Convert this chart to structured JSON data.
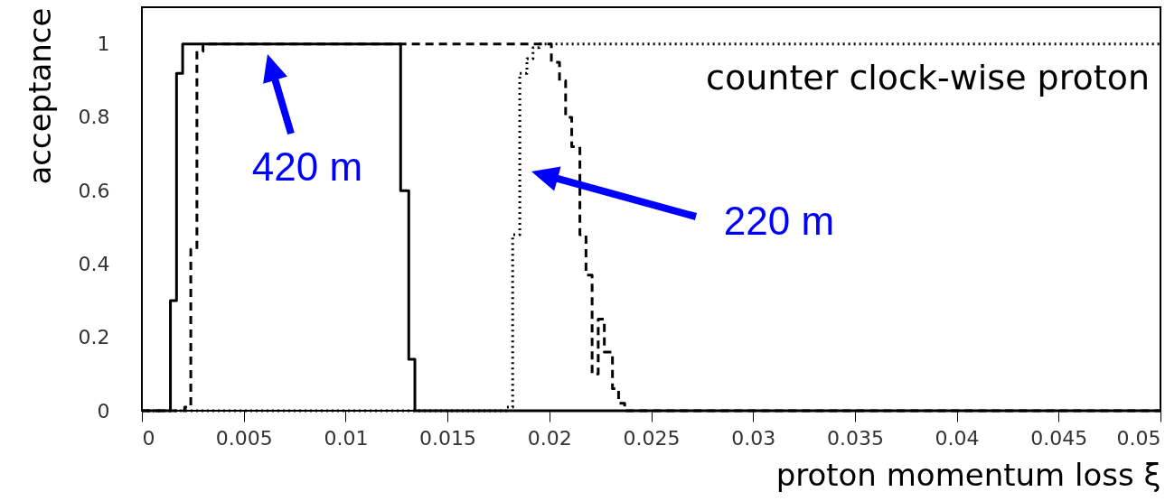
{
  "chart_data": {
    "type": "step",
    "xlabel": "proton momentum loss ξ",
    "ylabel": "acceptance",
    "xlim": [
      0,
      0.05
    ],
    "ylim": [
      0,
      1.1
    ],
    "xticks": [
      0,
      0.005,
      0.01,
      0.015,
      0.02,
      0.025,
      0.03,
      0.035,
      0.04,
      0.045,
      0.05
    ],
    "yticks": [
      0,
      0.2,
      0.4,
      0.6,
      0.8,
      1
    ],
    "marker": "none",
    "series": [
      {
        "color": "#000000",
        "line_style": "solid",
        "x": [
          0,
          0.0014,
          0.0017,
          0.002,
          0.0127,
          0.0131,
          0.0134,
          0.05
        ],
        "values": [
          0,
          0.3,
          0.92,
          1,
          0.6,
          0.14,
          0,
          0
        ]
      },
      {
        "color": "#000000",
        "line_style": "dashed",
        "x": [
          0,
          0.0021,
          0.0024,
          0.0027,
          0.003,
          0.0201,
          0.0205,
          0.0208,
          0.0211,
          0.0215,
          0.0218,
          0.0221,
          0.0224,
          0.0227,
          0.0231,
          0.0234,
          0.0237,
          0.05
        ],
        "values": [
          0,
          0.01,
          0.44,
          0.98,
          1,
          0.95,
          0.9,
          0.8,
          0.72,
          0.48,
          0.37,
          0.1,
          0.25,
          0.16,
          0.06,
          0.02,
          0,
          0
        ]
      },
      {
        "color": "#000000",
        "line_style": "dotted",
        "x": [
          0,
          0.0179,
          0.0182,
          0.01855,
          0.0189,
          0.0192,
          0.0195,
          0.05
        ],
        "values": [
          0,
          0.01,
          0.48,
          0.92,
          0.96,
          0.99,
          1,
          1
        ]
      }
    ],
    "annotations": [
      "counter clock-wise proton",
      "420 m",
      "220 m"
    ]
  }
}
